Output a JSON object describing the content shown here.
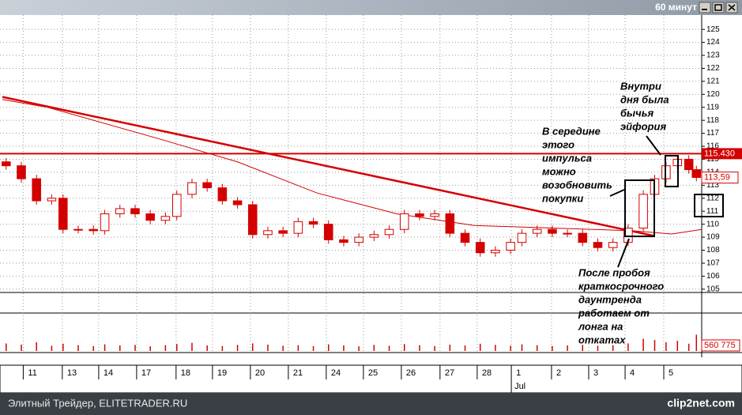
{
  "chart_data": {
    "type": "candlestick",
    "window_title": "60 минут",
    "color": "#d40000",
    "grid": true,
    "ylim": [
      104.5,
      125.8
    ],
    "yticks": [
      105,
      106,
      107,
      108,
      109,
      110,
      111,
      112,
      113,
      114,
      115,
      116,
      117,
      118,
      119,
      120,
      121,
      122,
      123,
      124,
      125
    ],
    "xlim": [
      0,
      184.4
    ],
    "xticks": [
      {
        "value": 5.5,
        "label": "11"
      },
      {
        "value": 15.8,
        "label": "13"
      },
      {
        "value": 25.4,
        "label": "14"
      },
      {
        "value": 35.4,
        "label": "17"
      },
      {
        "value": 45.8,
        "label": "18"
      },
      {
        "value": 55.4,
        "label": "19"
      },
      {
        "value": 65.4,
        "label": "20"
      },
      {
        "value": 75.4,
        "label": "21"
      },
      {
        "value": 85.4,
        "label": "24"
      },
      {
        "value": 95.2,
        "label": "25"
      },
      {
        "value": 105.2,
        "label": "26"
      },
      {
        "value": 115.4,
        "label": "27"
      },
      {
        "value": 125.2,
        "label": "28"
      },
      {
        "value": 134.2,
        "label": "1"
      },
      {
        "value": 144.8,
        "label": "2"
      },
      {
        "value": 154.6,
        "label": "3"
      },
      {
        "value": 164.2,
        "label": "4"
      },
      {
        "value": 174.4,
        "label": "5"
      }
    ],
    "month_label": "Jul",
    "candles": {
      "x": [
        1,
        5,
        9,
        13,
        16,
        20,
        24,
        27,
        31,
        35,
        39,
        43,
        46,
        50,
        54,
        58,
        62,
        66,
        70,
        74,
        78,
        82,
        86,
        90,
        94,
        98,
        102,
        106,
        110,
        114,
        118,
        122,
        126,
        130,
        134,
        137,
        141,
        145,
        149,
        153,
        157,
        161,
        165,
        169,
        172,
        175,
        178,
        181,
        183
      ],
      "open": [
        114.8,
        114.5,
        113.5,
        111.8,
        112.0,
        109.6,
        109.6,
        109.5,
        110.8,
        111.2,
        110.8,
        110.3,
        110.6,
        112.3,
        113.2,
        112.8,
        111.8,
        111.5,
        109.2,
        109.5,
        109.3,
        110.2,
        110.0,
        108.8,
        108.6,
        109.0,
        109.2,
        109.6,
        110.8,
        110.6,
        110.8,
        109.3,
        108.6,
        107.8,
        108.0,
        108.6,
        109.3,
        109.6,
        109.3,
        109.3,
        108.6,
        108.2,
        108.6,
        109.7,
        112.3,
        113.5,
        114.5,
        115.0,
        114.2
      ],
      "high": [
        115.1,
        114.8,
        113.8,
        112.3,
        112.3,
        109.9,
        109.9,
        111.1,
        111.5,
        111.5,
        111.1,
        110.9,
        112.6,
        113.5,
        113.5,
        113.1,
        112.1,
        111.8,
        109.8,
        109.8,
        110.5,
        110.5,
        110.3,
        109.1,
        109.3,
        109.5,
        109.9,
        111.1,
        111.1,
        111.1,
        111.1,
        109.6,
        108.9,
        108.3,
        108.9,
        109.6,
        109.9,
        109.9,
        109.6,
        109.6,
        108.9,
        108.9,
        110.0,
        112.6,
        113.8,
        114.8,
        115.3,
        115.3,
        114.5
      ],
      "low": [
        114.2,
        113.2,
        111.5,
        111.5,
        109.3,
        109.3,
        109.2,
        109.2,
        110.5,
        110.5,
        110.0,
        110.0,
        110.3,
        112.0,
        112.5,
        111.5,
        111.2,
        108.9,
        108.9,
        109.0,
        109.0,
        109.7,
        108.5,
        108.3,
        108.3,
        108.7,
        108.9,
        109.3,
        110.3,
        110.3,
        109.0,
        108.3,
        107.5,
        107.5,
        107.7,
        108.3,
        109.0,
        109.0,
        109.0,
        108.3,
        107.9,
        107.9,
        108.3,
        109.4,
        112.0,
        113.2,
        114.2,
        113.9,
        113.3
      ],
      "close": [
        114.5,
        113.5,
        111.8,
        112.0,
        109.6,
        109.6,
        109.5,
        110.8,
        111.2,
        110.8,
        110.3,
        110.6,
        112.3,
        113.2,
        112.8,
        111.8,
        111.5,
        109.2,
        109.5,
        109.3,
        110.2,
        110.0,
        108.8,
        108.6,
        109.0,
        109.2,
        109.6,
        110.8,
        110.6,
        110.8,
        109.3,
        108.6,
        107.8,
        108.0,
        108.6,
        109.3,
        109.6,
        109.3,
        109.3,
        108.6,
        108.2,
        108.6,
        109.7,
        112.3,
        113.5,
        114.5,
        115.0,
        114.2,
        113.6
      ],
      "volume": [
        260000,
        220000,
        300000,
        180000,
        250000,
        200000,
        170000,
        230000,
        190000,
        210000,
        160000,
        200000,
        240000,
        280000,
        190000,
        170000,
        210000,
        260000,
        220000,
        180000,
        200000,
        170000,
        230000,
        190000,
        160000,
        210000,
        180000,
        240000,
        200000,
        170000,
        220000,
        190000,
        250000,
        210000,
        180000,
        230000,
        200000,
        170000,
        190000,
        210000,
        180000,
        200000,
        260000,
        420000,
        380000,
        300000,
        350000,
        250000,
        560775
      ]
    },
    "vlim": [
      0,
      1200000
    ],
    "volume_label": "560 775",
    "trendline": {
      "x": [
        0,
        171.9
      ],
      "values": [
        119.8,
        109.1
      ]
    },
    "moving_average": {
      "x": [
        0,
        11.9,
        41,
        62,
        83,
        104,
        124.4,
        145.2,
        166,
        176.5,
        184.4
      ],
      "values": [
        119.6,
        119.0,
        116.6,
        114.8,
        112.4,
        110.8,
        109.9,
        109.7,
        109.5,
        109.25,
        109.6
      ]
    },
    "level": {
      "value": 115.43,
      "label": "115.430"
    },
    "last_price": {
      "value": 113.59,
      "label": "113,59"
    },
    "annotations": [
      {
        "lines": [
          "Внутри",
          "дня была",
          "бычья",
          "эйфория"
        ]
      },
      {
        "lines": [
          "В середине",
          "этого",
          "импульса",
          "можно",
          "возобновить",
          "покупки"
        ]
      },
      {
        "lines": [
          "После пробоя",
          "краткосрочного",
          "даунтренда",
          "работаем от",
          "лонга на",
          "откатах"
        ]
      }
    ]
  },
  "footer": {
    "source": "Элитный Трейдер, ELITETRADER.RU",
    "brand": "clip2net.com"
  }
}
